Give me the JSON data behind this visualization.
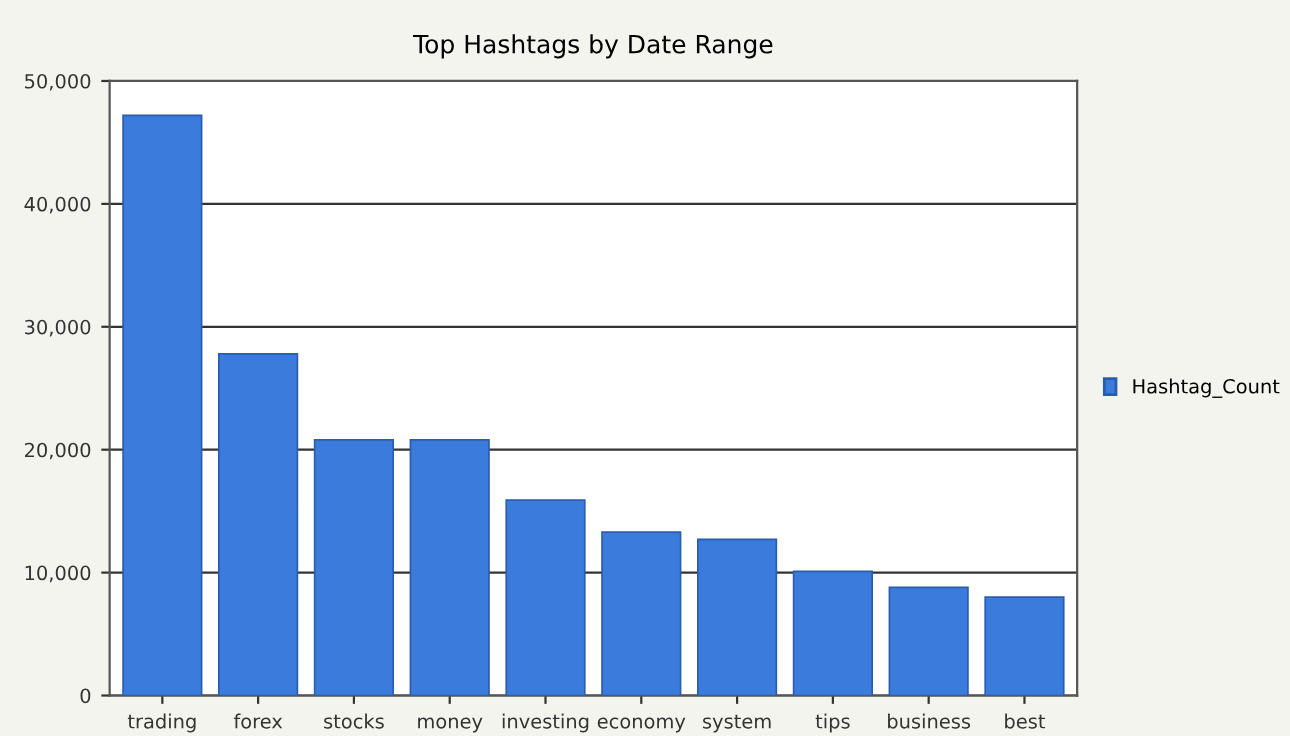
{
  "chart_data": {
    "type": "bar",
    "title": "Top Hashtags by Date Range",
    "categories": [
      "trading",
      "forex",
      "stocks",
      "money",
      "investing",
      "economy",
      "system",
      "tips",
      "business",
      "best"
    ],
    "series": [
      {
        "name": "Hashtag_Count",
        "color": "#3a7bdc",
        "values": [
          47200,
          27800,
          20800,
          20800,
          15900,
          13300,
          12700,
          10100,
          8800,
          8000
        ]
      }
    ],
    "ylim": [
      0,
      50000
    ],
    "yticks": [
      {
        "value": 0,
        "label": "0"
      },
      {
        "value": 10000,
        "label": "10,000"
      },
      {
        "value": 20000,
        "label": "20,000"
      },
      {
        "value": 30000,
        "label": "30,000"
      },
      {
        "value": 40000,
        "label": "40,000"
      },
      {
        "value": 50000,
        "label": "50,000"
      }
    ],
    "grid": "y",
    "legend": "right"
  }
}
